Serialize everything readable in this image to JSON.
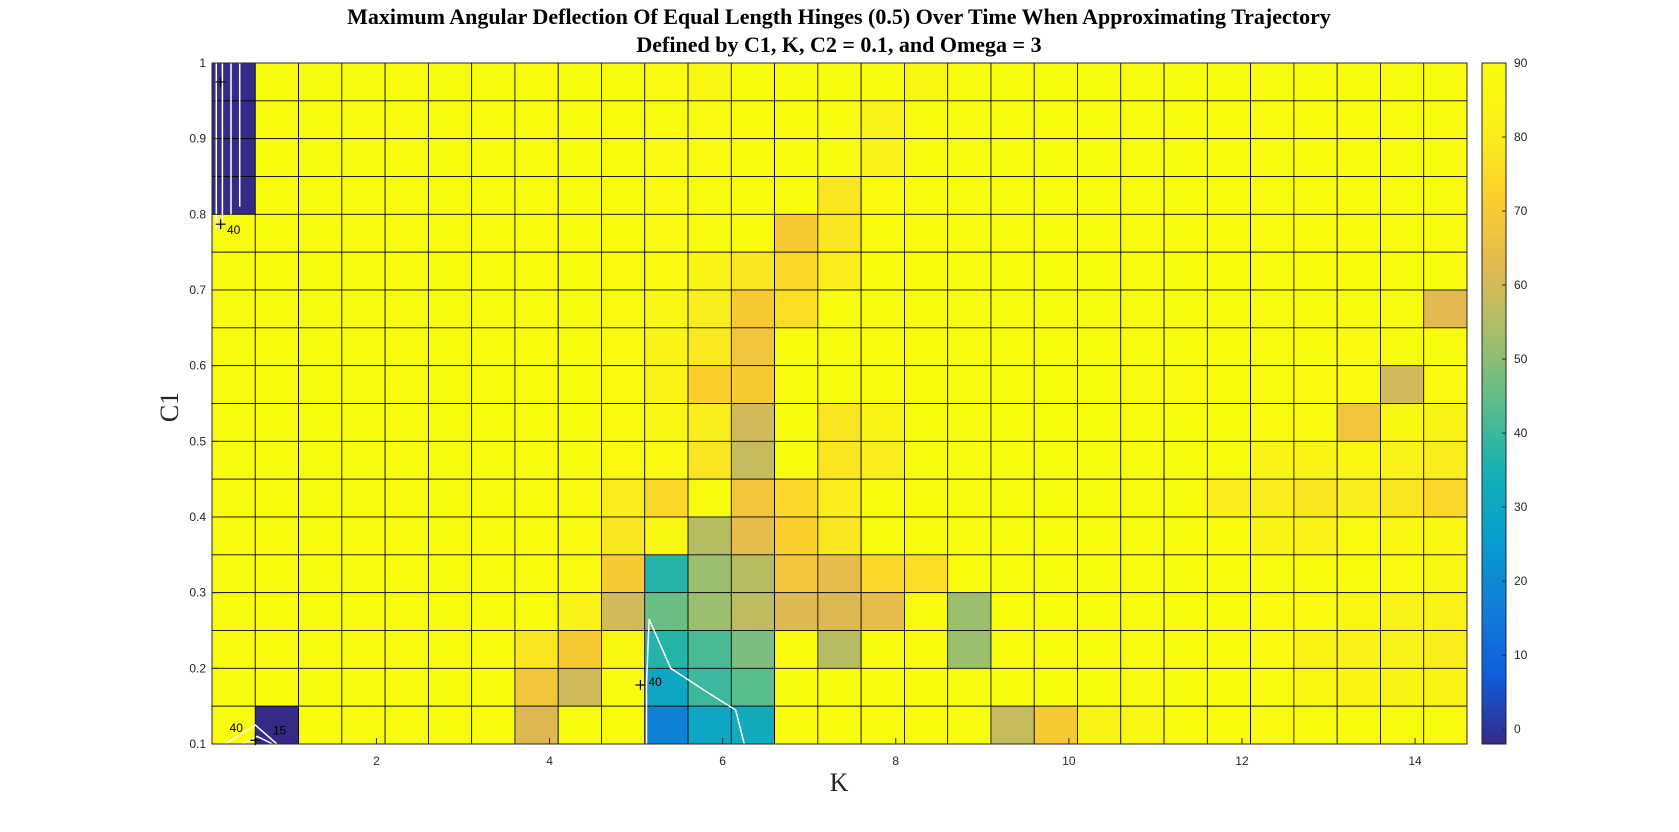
{
  "chart_data": {
    "type": "heatmap",
    "title_line1": "Maximum Angular Deflection Of Equal Length Hinges (0.5) Over Time When Approximating Trajectory",
    "title_line2": "Defined by C1, K, C2 = 0.1, and Omega = 3",
    "xlabel": "K",
    "ylabel": "C1",
    "xlim": [
      0.1,
      14.6
    ],
    "ylim": [
      0.1,
      1.0
    ],
    "xticks": [
      2,
      4,
      6,
      8,
      10,
      12,
      14
    ],
    "yticks": [
      0.1,
      0.2,
      0.3,
      0.4,
      0.5,
      0.6,
      0.7,
      0.8,
      0.9,
      1.0
    ],
    "x_cell_edges": [
      0.1,
      0.6,
      1.1,
      1.6,
      2.1,
      2.6,
      3.1,
      3.6,
      4.1,
      4.6,
      5.1,
      5.6,
      6.1,
      6.6,
      7.1,
      7.6,
      8.1,
      8.6,
      9.1,
      9.6,
      10.1,
      10.6,
      11.1,
      11.6,
      12.1,
      12.6,
      13.1,
      13.6,
      14.1,
      14.6
    ],
    "y_cell_edges": [
      0.1,
      0.15,
      0.2,
      0.25,
      0.3,
      0.35,
      0.4,
      0.45,
      0.5,
      0.55,
      0.6,
      0.65,
      0.7,
      0.75,
      0.8,
      0.85,
      0.9,
      0.95,
      1.0
    ],
    "colormap": "parula",
    "clim": [
      -2,
      90
    ],
    "colorbar_ticks": [
      0,
      10,
      20,
      30,
      40,
      50,
      60,
      70,
      80,
      90
    ],
    "grid": true,
    "values_rows_top_to_bottom": [
      [
        -2,
        90,
        90,
        90,
        90,
        90,
        90,
        90,
        90,
        90,
        88,
        86,
        90,
        90,
        90,
        90,
        86,
        90,
        90,
        90,
        90,
        90,
        90,
        90,
        90,
        90,
        90,
        90,
        90
      ],
      [
        -2,
        90,
        90,
        90,
        90,
        90,
        90,
        90,
        90,
        90,
        90,
        88,
        90,
        90,
        90,
        82,
        90,
        90,
        90,
        90,
        90,
        90,
        90,
        90,
        90,
        90,
        90,
        90,
        90
      ],
      [
        -2,
        90,
        90,
        90,
        90,
        90,
        90,
        90,
        90,
        90,
        88,
        88,
        90,
        90,
        90,
        82,
        90,
        90,
        90,
        90,
        90,
        90,
        90,
        90,
        90,
        90,
        90,
        90,
        90
      ],
      [
        -2,
        90,
        90,
        90,
        90,
        90,
        90,
        90,
        90,
        90,
        88,
        90,
        90,
        90,
        78,
        88,
        90,
        90,
        90,
        90,
        90,
        90,
        90,
        90,
        90,
        90,
        90,
        90,
        90
      ],
      [
        90,
        90,
        90,
        90,
        90,
        90,
        90,
        90,
        90,
        90,
        88,
        90,
        90,
        70,
        78,
        90,
        90,
        90,
        90,
        90,
        90,
        90,
        90,
        90,
        90,
        90,
        90,
        90,
        90
      ],
      [
        90,
        90,
        90,
        90,
        90,
        90,
        90,
        90,
        90,
        88,
        88,
        84,
        78,
        74,
        80,
        90,
        90,
        90,
        90,
        90,
        90,
        90,
        90,
        90,
        90,
        90,
        90,
        90,
        90
      ],
      [
        90,
        90,
        90,
        90,
        90,
        90,
        90,
        90,
        90,
        88,
        86,
        80,
        70,
        76,
        90,
        90,
        90,
        90,
        90,
        90,
        90,
        90,
        90,
        90,
        90,
        90,
        90,
        90,
        63
      ],
      [
        90,
        90,
        90,
        90,
        90,
        90,
        90,
        90,
        90,
        88,
        84,
        79,
        68,
        90,
        90,
        90,
        90,
        90,
        90,
        90,
        90,
        90,
        90,
        90,
        90,
        90,
        88,
        90,
        90
      ],
      [
        90,
        90,
        90,
        90,
        90,
        90,
        90,
        90,
        90,
        88,
        84,
        72,
        70,
        90,
        90,
        90,
        90,
        90,
        90,
        90,
        90,
        89,
        89,
        90,
        90,
        88,
        88,
        60,
        88
      ],
      [
        90,
        90,
        90,
        90,
        90,
        90,
        90,
        90,
        90,
        88,
        86,
        80,
        60,
        90,
        78,
        84,
        90,
        90,
        90,
        90,
        90,
        90,
        90,
        90,
        88,
        88,
        68,
        86,
        84
      ],
      [
        90,
        90,
        90,
        90,
        90,
        90,
        90,
        90,
        90,
        88,
        88,
        78,
        58,
        90,
        78,
        80,
        90,
        90,
        90,
        90,
        90,
        90,
        90,
        90,
        84,
        84,
        86,
        82,
        80
      ],
      [
        90,
        90,
        90,
        90,
        90,
        90,
        90,
        90,
        88,
        80,
        74,
        90,
        68,
        74,
        80,
        90,
        90,
        90,
        90,
        90,
        90,
        90,
        90,
        80,
        80,
        78,
        80,
        78,
        74
      ],
      [
        90,
        90,
        90,
        90,
        90,
        90,
        90,
        90,
        88,
        78,
        86,
        56,
        64,
        72,
        78,
        90,
        90,
        90,
        90,
        90,
        90,
        90,
        90,
        90,
        84,
        82,
        88,
        86,
        86
      ],
      [
        90,
        90,
        90,
        90,
        90,
        90,
        90,
        90,
        88,
        70,
        37,
        52,
        56,
        68,
        64,
        74,
        76,
        90,
        90,
        90,
        90,
        90,
        90,
        90,
        90,
        90,
        90,
        88,
        86
      ],
      [
        90,
        90,
        90,
        90,
        90,
        90,
        90,
        90,
        82,
        60,
        46,
        52,
        57,
        62,
        62,
        64,
        90,
        52,
        90,
        90,
        90,
        90,
        90,
        90,
        88,
        88,
        86,
        82,
        82
      ],
      [
        90,
        90,
        90,
        90,
        90,
        90,
        90,
        78,
        70,
        86,
        37,
        42,
        48,
        90,
        56,
        90,
        90,
        52,
        90,
        90,
        90,
        90,
        90,
        90,
        88,
        84,
        82,
        82,
        80
      ],
      [
        90,
        90,
        90,
        90,
        90,
        90,
        90,
        68,
        60,
        90,
        30,
        40,
        44,
        90,
        90,
        90,
        90,
        90,
        90,
        90,
        90,
        88,
        90,
        90,
        90,
        86,
        84,
        84,
        84
      ],
      [
        90,
        -2,
        90,
        90,
        90,
        90,
        90,
        62,
        90,
        90,
        18,
        30,
        32,
        90,
        90,
        90,
        90,
        90,
        58,
        70,
        84,
        86,
        90,
        90,
        88,
        90,
        90,
        90,
        90
      ]
    ],
    "contour_labels": [
      "40",
      "40",
      "40",
      "15",
      "40"
    ]
  }
}
